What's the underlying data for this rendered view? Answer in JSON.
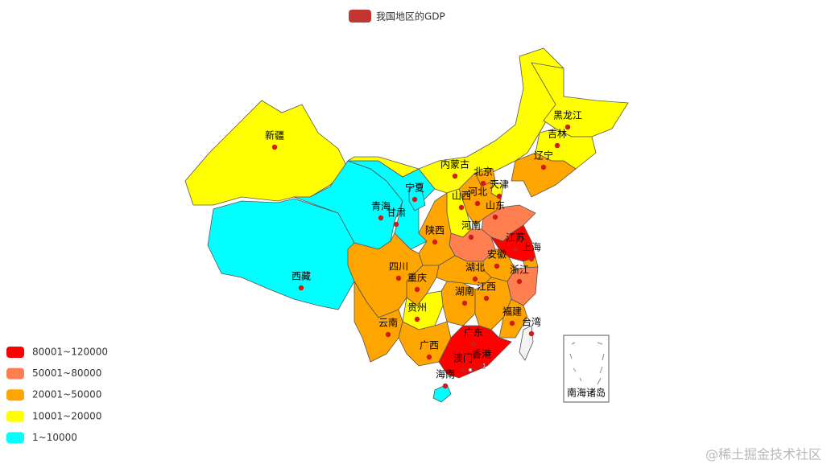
{
  "chart_data": {
    "type": "map",
    "legend": [
      {
        "name": "我国地区的GDP",
        "color": "#c23531"
      }
    ],
    "pieces": [
      {
        "label": "80001~120000",
        "color": "#ff0000"
      },
      {
        "label": "50001~80000",
        "color": "#ff7f50"
      },
      {
        "label": "20001~50000",
        "color": "#ffa500"
      },
      {
        "label": "10001~20000",
        "color": "#ffff00"
      },
      {
        "label": "1~10000",
        "color": "#00ffff"
      }
    ],
    "no_data_color": "#f3f3f3",
    "regions": [
      {
        "name": "新疆",
        "piece": 3
      },
      {
        "name": "西藏",
        "piece": 4
      },
      {
        "name": "青海",
        "piece": 4
      },
      {
        "name": "甘肃",
        "piece": 4
      },
      {
        "name": "宁夏",
        "piece": 4
      },
      {
        "name": "内蒙古",
        "piece": 3
      },
      {
        "name": "黑龙江",
        "piece": 3
      },
      {
        "name": "吉林",
        "piece": 3
      },
      {
        "name": "辽宁",
        "piece": 2
      },
      {
        "name": "北京",
        "piece": 2
      },
      {
        "name": "天津",
        "piece": 3
      },
      {
        "name": "河北",
        "piece": 2
      },
      {
        "name": "山西",
        "piece": 3
      },
      {
        "name": "山东",
        "piece": 1
      },
      {
        "name": "河南",
        "piece": 1
      },
      {
        "name": "陕西",
        "piece": 2
      },
      {
        "name": "江苏",
        "piece": 0
      },
      {
        "name": "安徽",
        "piece": 2
      },
      {
        "name": "上海",
        "piece": 2
      },
      {
        "name": "浙江",
        "piece": 1
      },
      {
        "name": "湖北",
        "piece": 2
      },
      {
        "name": "重庆",
        "piece": 2
      },
      {
        "name": "四川",
        "piece": 2
      },
      {
        "name": "湖南",
        "piece": 2
      },
      {
        "name": "江西",
        "piece": 2
      },
      {
        "name": "福建",
        "piece": 2
      },
      {
        "name": "贵州",
        "piece": 3
      },
      {
        "name": "云南",
        "piece": 2
      },
      {
        "name": "广西",
        "piece": 2
      },
      {
        "name": "广东",
        "piece": 0
      },
      {
        "name": "海南",
        "piece": 4
      },
      {
        "name": "台湾",
        "piece": null
      },
      {
        "name": "香港",
        "piece": null
      },
      {
        "name": "澳门",
        "piece": null
      }
    ],
    "inset_label": "南海诸岛",
    "watermark": "@稀土掘金技术社区"
  }
}
